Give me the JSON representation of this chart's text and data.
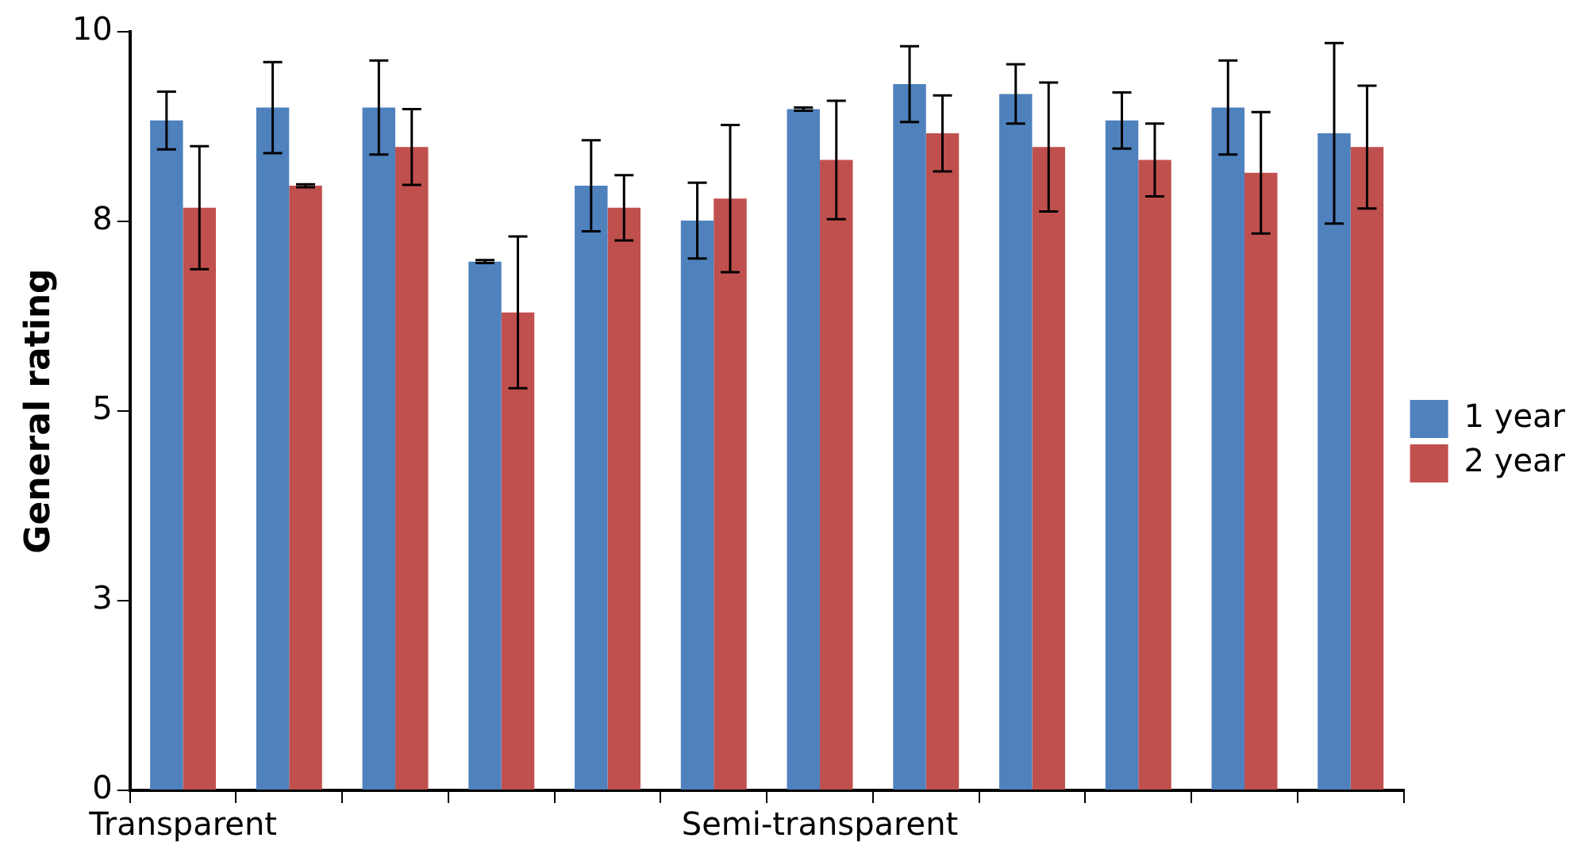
{
  "chart_data": {
    "type": "bar",
    "ylabel": "General rating",
    "categories": [
      "Transparent",
      null,
      null,
      null,
      null,
      null,
      "Semi-transparent",
      null,
      null,
      null,
      null,
      null
    ],
    "series": [
      {
        "name": "1 year",
        "color": "#4f81bd",
        "values": [
          8.83,
          9.0,
          9.0,
          6.97,
          7.97,
          7.51,
          8.98,
          9.31,
          9.18,
          8.83,
          9.0,
          8.66
        ],
        "errors": [
          0.38,
          0.6,
          0.62,
          0.02,
          0.6,
          0.5,
          0.02,
          0.5,
          0.39,
          0.37,
          0.62,
          1.19
        ]
      },
      {
        "name": "2 year",
        "color": "#c0504d",
        "values": [
          7.68,
          7.97,
          8.48,
          6.3,
          7.68,
          7.8,
          8.31,
          8.66,
          8.48,
          8.31,
          8.14,
          8.48
        ],
        "errors": [
          0.81,
          0.02,
          0.5,
          1.0,
          0.43,
          0.97,
          0.78,
          0.5,
          0.85,
          0.48,
          0.8,
          0.81
        ]
      }
    ],
    "ylim": [
      0,
      10
    ],
    "yticks": [
      0,
      {
        "value": 2.5,
        "label": "3"
      },
      5,
      {
        "value": 7.5,
        "label": "8"
      },
      10
    ],
    "grid": false,
    "legend": "right"
  }
}
